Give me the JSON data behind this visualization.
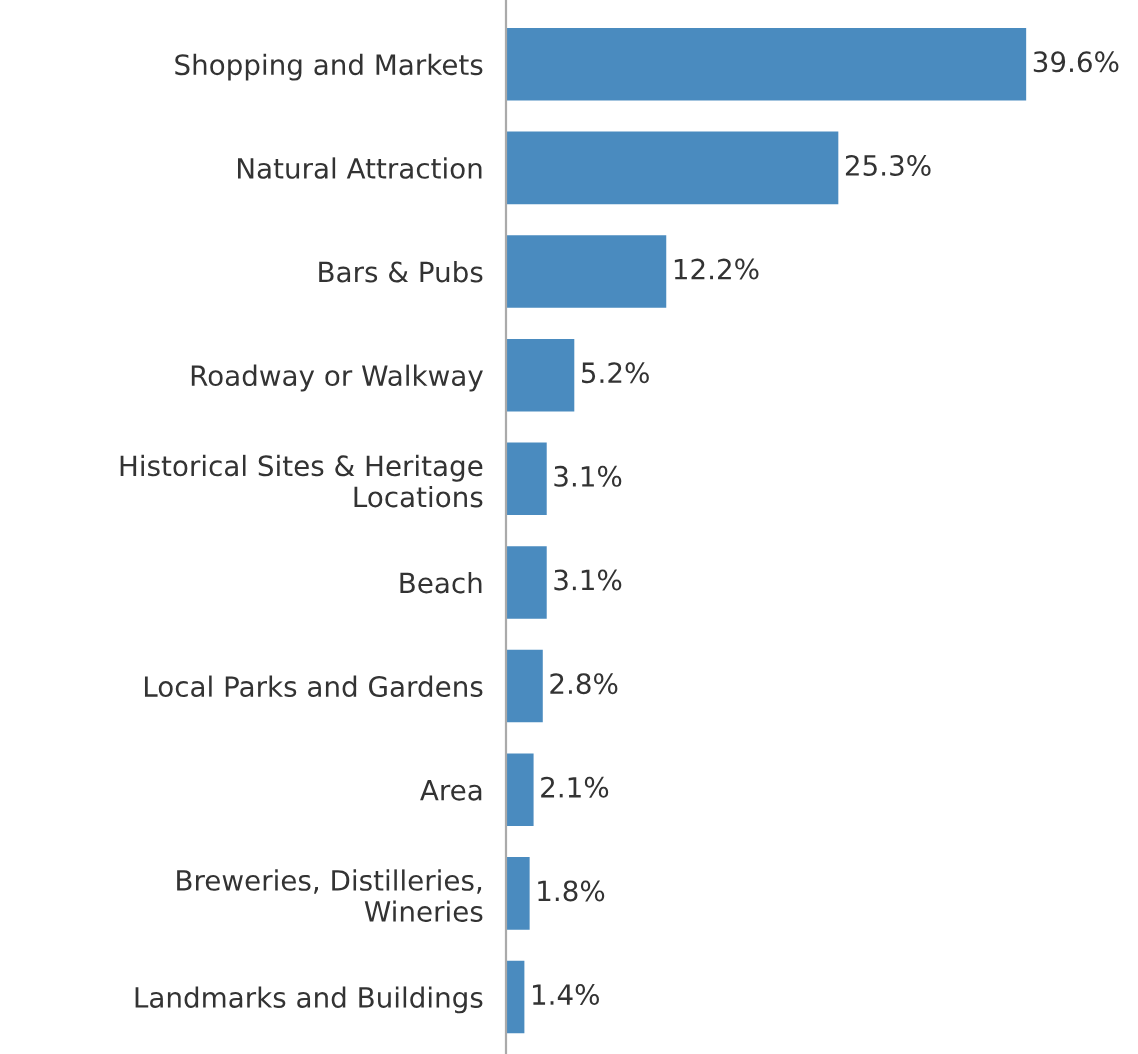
{
  "chart_data": {
    "type": "bar",
    "orientation": "horizontal",
    "categories": [
      "Shopping and Markets",
      "Natural Attraction",
      "Bars & Pubs",
      "Roadway or Walkway",
      "Historical Sites & Heritage\nLocations",
      "Beach",
      "Local Parks and Gardens",
      "Area",
      "Breweries, Distilleries,\nWineries",
      "Landmarks and Buildings"
    ],
    "values": [
      39.6,
      25.3,
      12.2,
      5.2,
      3.1,
      3.1,
      2.8,
      2.1,
      1.8,
      1.4
    ],
    "value_labels": [
      "39.6%",
      "25.3%",
      "12.2%",
      "5.2%",
      "3.1%",
      "3.1%",
      "2.8%",
      "2.1%",
      "1.8%",
      "1.4%"
    ],
    "color": "#4a8bbf",
    "grid": false,
    "legend": false,
    "tick_labels": "y"
  }
}
